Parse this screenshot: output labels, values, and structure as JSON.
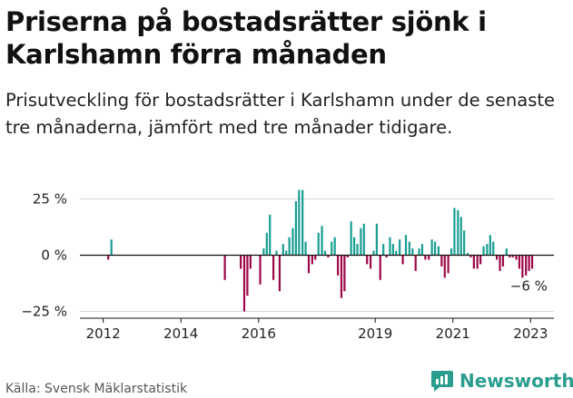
{
  "title": "Priserna på bostadsrätter sjönk i Karlshamn förra månaden",
  "subtitle": "Prisutveckling för bostadsrätter i Karlshamn under de senaste tre månaderna, jämfört med tre månader tidigare.",
  "source": "Källa: Svensk Mäklarstatistik",
  "brand": "Newsworthy",
  "colors": {
    "positive": "#1a9e92",
    "negative": "#9e0848",
    "grid": "#d6d6d6",
    "axis": "#111111",
    "brand": "#2a9d8f"
  },
  "chart_data": {
    "type": "bar",
    "ylim": [
      -28,
      30
    ],
    "yticks": [
      25,
      0,
      -25
    ],
    "ytick_labels": [
      "25 %",
      "0 %",
      "−25 %"
    ],
    "xticks": [
      2012,
      2014,
      2016,
      2019,
      2021,
      2023
    ],
    "xlim": [
      2011.4,
      2023.6
    ],
    "annotation": {
      "text": "−6 %",
      "x": 2023.0,
      "y": -6
    },
    "grid": true,
    "bars": [
      {
        "x": 2012.13,
        "y": -2
      },
      {
        "x": 2012.21,
        "y": 7
      },
      {
        "x": 2015.13,
        "y": -11
      },
      {
        "x": 2015.54,
        "y": -6
      },
      {
        "x": 2015.63,
        "y": -25
      },
      {
        "x": 2015.71,
        "y": -18
      },
      {
        "x": 2015.79,
        "y": -6
      },
      {
        "x": 2016.04,
        "y": -13
      },
      {
        "x": 2016.13,
        "y": 3
      },
      {
        "x": 2016.21,
        "y": 10
      },
      {
        "x": 2016.29,
        "y": 18
      },
      {
        "x": 2016.38,
        "y": -11
      },
      {
        "x": 2016.46,
        "y": 2
      },
      {
        "x": 2016.54,
        "y": -16
      },
      {
        "x": 2016.63,
        "y": 5
      },
      {
        "x": 2016.71,
        "y": 2
      },
      {
        "x": 2016.79,
        "y": 8
      },
      {
        "x": 2016.88,
        "y": 12
      },
      {
        "x": 2016.96,
        "y": 24
      },
      {
        "x": 2017.04,
        "y": 29
      },
      {
        "x": 2017.13,
        "y": 29
      },
      {
        "x": 2017.21,
        "y": 6
      },
      {
        "x": 2017.29,
        "y": -8
      },
      {
        "x": 2017.38,
        "y": -4
      },
      {
        "x": 2017.46,
        "y": -2
      },
      {
        "x": 2017.54,
        "y": 10
      },
      {
        "x": 2017.63,
        "y": 13
      },
      {
        "x": 2017.71,
        "y": 2
      },
      {
        "x": 2017.79,
        "y": -1
      },
      {
        "x": 2017.88,
        "y": 6
      },
      {
        "x": 2017.96,
        "y": 8
      },
      {
        "x": 2018.04,
        "y": -9
      },
      {
        "x": 2018.13,
        "y": -19
      },
      {
        "x": 2018.21,
        "y": -16
      },
      {
        "x": 2018.29,
        "y": -1
      },
      {
        "x": 2018.38,
        "y": 15
      },
      {
        "x": 2018.46,
        "y": 8
      },
      {
        "x": 2018.54,
        "y": 5
      },
      {
        "x": 2018.63,
        "y": 12
      },
      {
        "x": 2018.71,
        "y": 14
      },
      {
        "x": 2018.79,
        "y": -4
      },
      {
        "x": 2018.88,
        "y": -6
      },
      {
        "x": 2018.96,
        "y": 2
      },
      {
        "x": 2019.04,
        "y": 14
      },
      {
        "x": 2019.13,
        "y": -11
      },
      {
        "x": 2019.21,
        "y": 5
      },
      {
        "x": 2019.29,
        "y": -1
      },
      {
        "x": 2019.38,
        "y": 8
      },
      {
        "x": 2019.46,
        "y": 5
      },
      {
        "x": 2019.54,
        "y": 2
      },
      {
        "x": 2019.63,
        "y": 7
      },
      {
        "x": 2019.71,
        "y": -4
      },
      {
        "x": 2019.79,
        "y": 9
      },
      {
        "x": 2019.88,
        "y": 6
      },
      {
        "x": 2019.96,
        "y": 3
      },
      {
        "x": 2020.04,
        "y": -7
      },
      {
        "x": 2020.13,
        "y": 3
      },
      {
        "x": 2020.21,
        "y": 5
      },
      {
        "x": 2020.29,
        "y": -2
      },
      {
        "x": 2020.38,
        "y": -2
      },
      {
        "x": 2020.46,
        "y": 7
      },
      {
        "x": 2020.54,
        "y": 6
      },
      {
        "x": 2020.63,
        "y": 4
      },
      {
        "x": 2020.71,
        "y": -5
      },
      {
        "x": 2020.79,
        "y": -10
      },
      {
        "x": 2020.88,
        "y": -8
      },
      {
        "x": 2020.96,
        "y": 3
      },
      {
        "x": 2021.04,
        "y": 21
      },
      {
        "x": 2021.13,
        "y": 20
      },
      {
        "x": 2021.21,
        "y": 17
      },
      {
        "x": 2021.29,
        "y": 11
      },
      {
        "x": 2021.38,
        "y": 1
      },
      {
        "x": 2021.46,
        "y": -1
      },
      {
        "x": 2021.54,
        "y": -6
      },
      {
        "x": 2021.63,
        "y": -6
      },
      {
        "x": 2021.71,
        "y": -4
      },
      {
        "x": 2021.79,
        "y": 4
      },
      {
        "x": 2021.88,
        "y": 5
      },
      {
        "x": 2021.96,
        "y": 9
      },
      {
        "x": 2022.04,
        "y": 6
      },
      {
        "x": 2022.13,
        "y": -2
      },
      {
        "x": 2022.21,
        "y": -7
      },
      {
        "x": 2022.29,
        "y": -5
      },
      {
        "x": 2022.38,
        "y": 3
      },
      {
        "x": 2022.46,
        "y": -1
      },
      {
        "x": 2022.54,
        "y": -1
      },
      {
        "x": 2022.63,
        "y": -2
      },
      {
        "x": 2022.71,
        "y": -6
      },
      {
        "x": 2022.79,
        "y": -10
      },
      {
        "x": 2022.88,
        "y": -9
      },
      {
        "x": 2022.96,
        "y": -7
      },
      {
        "x": 2023.04,
        "y": -6
      }
    ]
  }
}
